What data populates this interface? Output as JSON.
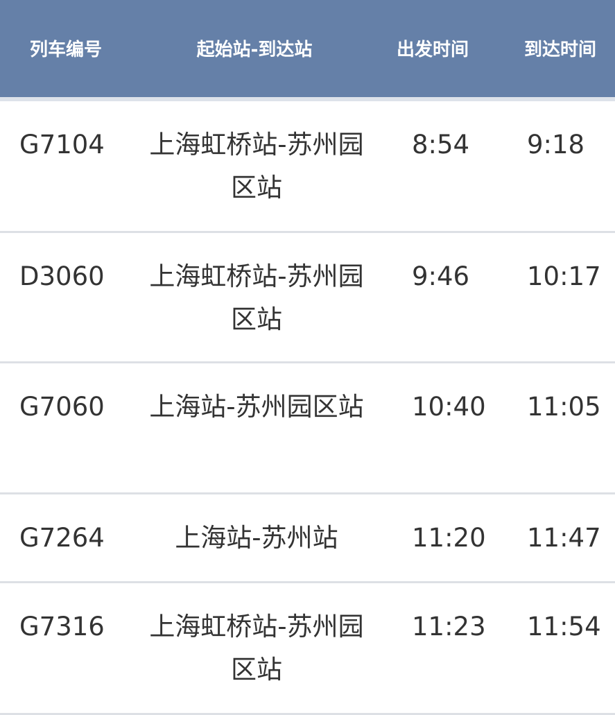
{
  "header": {
    "train_no": "列车编号",
    "route": "起始站-到达站",
    "depart": "出发时间",
    "arrive": "到达时间"
  },
  "header_color": "#6580a8",
  "rows": [
    {
      "train_no": "G7104",
      "route": "上海虹桥站-苏州园区站",
      "depart": "8:54",
      "arrive": "9:18"
    },
    {
      "train_no": "D3060",
      "route": "上海虹桥站-苏州园区站",
      "depart": "9:46",
      "arrive": "10:17"
    },
    {
      "train_no": "G7060",
      "route": "上海站-苏州园区站",
      "depart": "10:40",
      "arrive": "11:05"
    },
    {
      "train_no": "G7264",
      "route": "上海站-苏州站",
      "depart": "11:20",
      "arrive": "11:47"
    },
    {
      "train_no": "G7316",
      "route": "上海虹桥站-苏州园区站",
      "depart": "11:23",
      "arrive": "11:54"
    }
  ]
}
